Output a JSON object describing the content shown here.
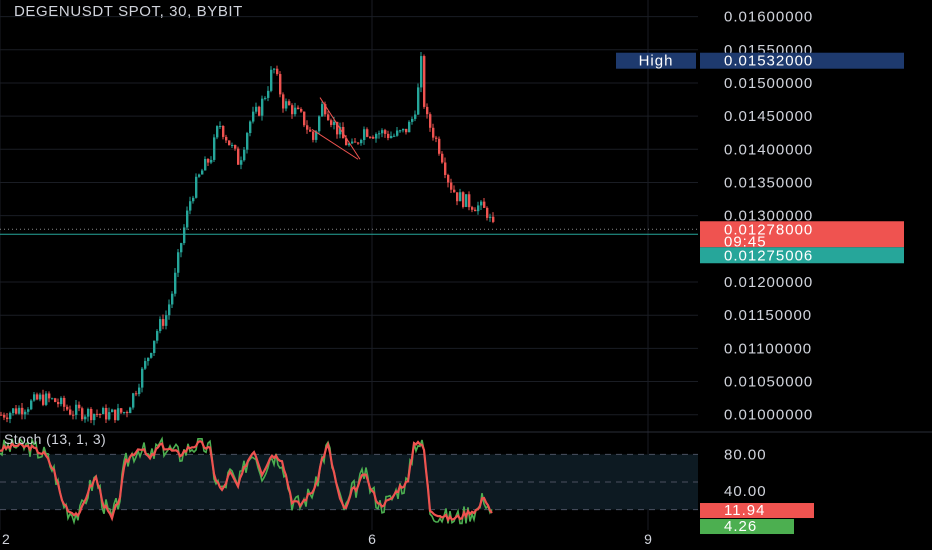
{
  "header": {
    "title": "DEGENUSDT SPOT, 30, BYBIT"
  },
  "colors": {
    "up": "#26a69a",
    "down": "#ef5350",
    "price_line": "#26a69a",
    "high_bg": "#1e3a6e",
    "stoch_k": "#ef5350",
    "stoch_d": "#4caf50",
    "background": "#000000",
    "grid": "#1a1d24"
  },
  "chart_data": [
    {
      "type": "candlestick",
      "title": "DEGENUSDT SPOT, 30, BYBIT",
      "y_ticks": [
        "0.01600000",
        "0.01550000",
        "0.01500000",
        "0.01450000",
        "0.01400000",
        "0.01350000",
        "0.01300000",
        "0.01200000",
        "0.01150000",
        "0.01100000",
        "0.01050000",
        "0.01000000"
      ],
      "ylim": [
        0.0098,
        0.01625
      ],
      "x_ticks": [
        {
          "label": "2",
          "bar": 0
        },
        {
          "label": "6",
          "bar": 372
        },
        {
          "label": "9",
          "bar": 648
        }
      ],
      "price_path": [
        [
          0,
          0.01
        ],
        [
          20,
          0.0101
        ],
        [
          40,
          0.01025
        ],
        [
          55,
          0.0102
        ],
        [
          70,
          0.01005
        ],
        [
          90,
          0.01003
        ],
        [
          110,
          0.01
        ],
        [
          125,
          0.01005
        ],
        [
          135,
          0.0104
        ],
        [
          145,
          0.0108
        ],
        [
          155,
          0.01125
        ],
        [
          165,
          0.0115
        ],
        [
          172,
          0.0119
        ],
        [
          180,
          0.0126
        ],
        [
          190,
          0.0133
        ],
        [
          200,
          0.01365
        ],
        [
          210,
          0.0139
        ],
        [
          218,
          0.0144
        ],
        [
          228,
          0.0141
        ],
        [
          238,
          0.0138
        ],
        [
          248,
          0.0144
        ],
        [
          258,
          0.0146
        ],
        [
          266,
          0.0149
        ],
        [
          272,
          0.01525
        ],
        [
          282,
          0.0147
        ],
        [
          292,
          0.0146
        ],
        [
          302,
          0.01445
        ],
        [
          312,
          0.01415
        ],
        [
          322,
          0.0147
        ],
        [
          332,
          0.0144
        ],
        [
          342,
          0.01415
        ],
        [
          352,
          0.014
        ],
        [
          362,
          0.0143
        ],
        [
          372,
          0.01425
        ],
        [
          382,
          0.01425
        ],
        [
          392,
          0.0142
        ],
        [
          402,
          0.01425
        ],
        [
          410,
          0.0144
        ],
        [
          416,
          0.01475
        ],
        [
          420,
          0.0153
        ],
        [
          424,
          0.0145
        ],
        [
          432,
          0.01425
        ],
        [
          440,
          0.01395
        ],
        [
          448,
          0.0135
        ],
        [
          456,
          0.0133
        ],
        [
          466,
          0.0132
        ],
        [
          476,
          0.01315
        ],
        [
          486,
          0.01305
        ],
        [
          492,
          0.0128
        ]
      ],
      "labels": {
        "high": {
          "text": "High",
          "value": "0.01532000",
          "price": 0.01532
        },
        "last": {
          "value": "0.01278000",
          "countdown": "09:45",
          "price": 0.01278
        },
        "bid": {
          "value": "0.01275006"
        }
      },
      "trendlines": [
        {
          "from": [
            320,
            0.01478
          ],
          "to": [
            360,
            0.01385
          ]
        },
        {
          "from": [
            312,
            0.0143
          ],
          "to": [
            358,
            0.01385
          ]
        }
      ]
    },
    {
      "type": "line",
      "title": "Stoch (13, 1, 3)",
      "y_ticks": [
        "80.00",
        "40.00"
      ],
      "ylim": [
        0,
        100
      ],
      "band": [
        20,
        80
      ],
      "dashed_levels": [
        20,
        50,
        80
      ],
      "k_path": [
        [
          0,
          85
        ],
        [
          15,
          90
        ],
        [
          30,
          88
        ],
        [
          45,
          80
        ],
        [
          55,
          60
        ],
        [
          62,
          30
        ],
        [
          70,
          18
        ],
        [
          80,
          15
        ],
        [
          88,
          40
        ],
        [
          96,
          55
        ],
        [
          104,
          25
        ],
        [
          112,
          10
        ],
        [
          120,
          35
        ],
        [
          125,
          70
        ],
        [
          132,
          80
        ],
        [
          140,
          88
        ],
        [
          150,
          75
        ],
        [
          160,
          90
        ],
        [
          170,
          85
        ],
        [
          180,
          80
        ],
        [
          190,
          88
        ],
        [
          200,
          92
        ],
        [
          210,
          85
        ],
        [
          215,
          55
        ],
        [
          222,
          40
        ],
        [
          230,
          60
        ],
        [
          238,
          45
        ],
        [
          246,
          70
        ],
        [
          254,
          85
        ],
        [
          262,
          60
        ],
        [
          272,
          80
        ],
        [
          282,
          75
        ],
        [
          292,
          30
        ],
        [
          300,
          25
        ],
        [
          308,
          35
        ],
        [
          316,
          45
        ],
        [
          322,
          75
        ],
        [
          328,
          90
        ],
        [
          334,
          60
        ],
        [
          340,
          30
        ],
        [
          346,
          20
        ],
        [
          352,
          40
        ],
        [
          358,
          45
        ],
        [
          364,
          60
        ],
        [
          372,
          40
        ],
        [
          380,
          25
        ],
        [
          390,
          30
        ],
        [
          400,
          45
        ],
        [
          408,
          50
        ],
        [
          414,
          92
        ],
        [
          418,
          95
        ],
        [
          424,
          85
        ],
        [
          430,
          20
        ],
        [
          440,
          14
        ],
        [
          450,
          10
        ],
        [
          460,
          12
        ],
        [
          470,
          18
        ],
        [
          478,
          20
        ],
        [
          484,
          35
        ],
        [
          492,
          15
        ]
      ],
      "last_k": "11.94",
      "last_d": "4.26"
    }
  ]
}
